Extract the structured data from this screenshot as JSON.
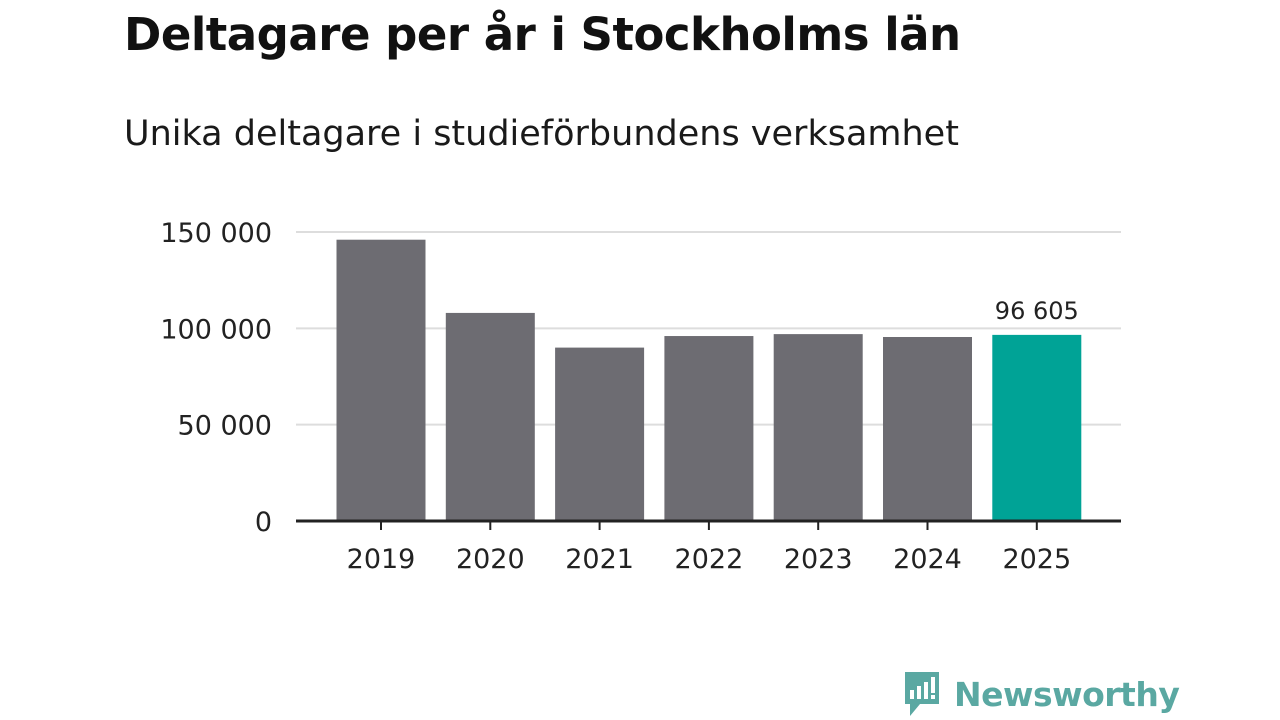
{
  "title": "Deltagare per år i Stockholms län",
  "subtitle": "Unika deltagare i studieförbundens verksamhet",
  "brand": {
    "name": "Newsworthy",
    "color": "#5aa8a2"
  },
  "colors": {
    "bar": "#6d6c72",
    "highlight": "#00a396",
    "grid": "#dddddd",
    "axis": "#222222",
    "text": "#222222"
  },
  "chart_data": {
    "type": "bar",
    "title": "Deltagare per år i Stockholms län",
    "subtitle": "Unika deltagare i studieförbundens verksamhet",
    "categories": [
      "2019",
      "2020",
      "2021",
      "2022",
      "2023",
      "2024",
      "2025"
    ],
    "values": [
      146000,
      108000,
      90000,
      96000,
      97000,
      95500,
      96605
    ],
    "highlight_index": 6,
    "data_labels": [
      {
        "index": 6,
        "text": "96 605"
      }
    ],
    "ylim": [
      0,
      150000
    ],
    "yticks": [
      0,
      50000,
      100000,
      150000
    ],
    "ytick_labels": [
      "0",
      "50 000",
      "100 000",
      "150 000"
    ],
    "grid": true,
    "xlabel": "",
    "ylabel": ""
  }
}
